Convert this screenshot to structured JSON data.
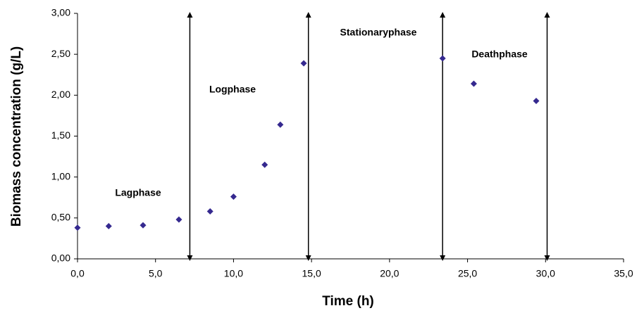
{
  "chart_data": {
    "type": "scatter",
    "x_label": "Time (h)",
    "y_label": "Biomass concentration (g/L)",
    "x": [
      0,
      2,
      4.2,
      6.5,
      8.5,
      10,
      12,
      13,
      14.5,
      23.4,
      25.4,
      29.4
    ],
    "values": [
      0.38,
      0.4,
      0.41,
      0.48,
      0.58,
      0.76,
      1.15,
      1.64,
      2.39,
      2.45,
      2.14,
      1.93
    ],
    "color": "#35298f",
    "phase_boundaries": [
      7.2,
      14.8,
      23.4,
      30.1
    ],
    "annotations": [
      "Lagphase",
      "Logphase",
      "Stationaryphase",
      "Deathphase"
    ],
    "xlim": [
      0,
      35
    ],
    "ylim": [
      0,
      3
    ],
    "xticks": [
      {
        "value": 0,
        "label": "0,0"
      },
      {
        "value": 5,
        "label": "5,0"
      },
      {
        "value": 10,
        "label": "10,0"
      },
      {
        "value": 15,
        "label": "15,0"
      },
      {
        "value": 20,
        "label": "20,0"
      },
      {
        "value": 25,
        "label": "25,0"
      },
      {
        "value": 30,
        "label": "30,0"
      },
      {
        "value": 35,
        "label": "35,0"
      }
    ],
    "yticks": [
      {
        "value": 0,
        "label": "0,00"
      },
      {
        "value": 0.5,
        "label": "0,50"
      },
      {
        "value": 1,
        "label": "1,00"
      },
      {
        "value": 1.5,
        "label": "1,50"
      },
      {
        "value": 2,
        "label": "2,00"
      },
      {
        "value": 2.5,
        "label": "2,50"
      },
      {
        "value": 3,
        "label": "3,00"
      }
    ]
  }
}
